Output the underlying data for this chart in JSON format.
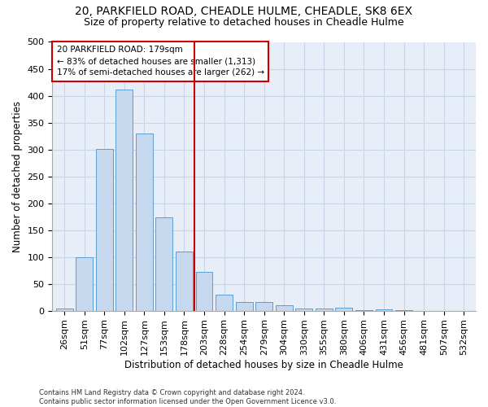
{
  "title1": "20, PARKFIELD ROAD, CHEADLE HULME, CHEADLE, SK8 6EX",
  "title2": "Size of property relative to detached houses in Cheadle Hulme",
  "xlabel": "Distribution of detached houses by size in Cheadle Hulme",
  "ylabel": "Number of detached properties",
  "bar_values": [
    4,
    99,
    301,
    412,
    330,
    174,
    110,
    72,
    30,
    16,
    16,
    10,
    4,
    4,
    6,
    1,
    3,
    1,
    0,
    0,
    0
  ],
  "categories": [
    "26sqm",
    "51sqm",
    "77sqm",
    "102sqm",
    "127sqm",
    "153sqm",
    "178sqm",
    "203sqm",
    "228sqm",
    "254sqm",
    "279sqm",
    "304sqm",
    "330sqm",
    "355sqm",
    "380sqm",
    "406sqm",
    "431sqm",
    "456sqm",
    "481sqm",
    "507sqm",
    "532sqm"
  ],
  "bar_color": "#c5d8ed",
  "bar_edge_color": "#5a9fd4",
  "bar_edge_width": 0.7,
  "vline_color": "#cc0000",
  "annotation_text": "20 PARKFIELD ROAD: 179sqm\n← 83% of detached houses are smaller (1,313)\n17% of semi-detached houses are larger (262) →",
  "annotation_box_color": "#ffffff",
  "annotation_box_edge": "#cc0000",
  "ylim": [
    0,
    500
  ],
  "yticks": [
    0,
    50,
    100,
    150,
    200,
    250,
    300,
    350,
    400,
    450,
    500
  ],
  "grid_color": "#c8d4e8",
  "background_color": "#e8eef8",
  "footer": "Contains HM Land Registry data © Crown copyright and database right 2024.\nContains public sector information licensed under the Open Government Licence v3.0.",
  "title_fontsize": 10,
  "subtitle_fontsize": 9,
  "xlabel_fontsize": 8.5,
  "ylabel_fontsize": 8.5,
  "tick_fontsize": 8,
  "annot_fontsize": 7.5,
  "footer_fontsize": 6
}
